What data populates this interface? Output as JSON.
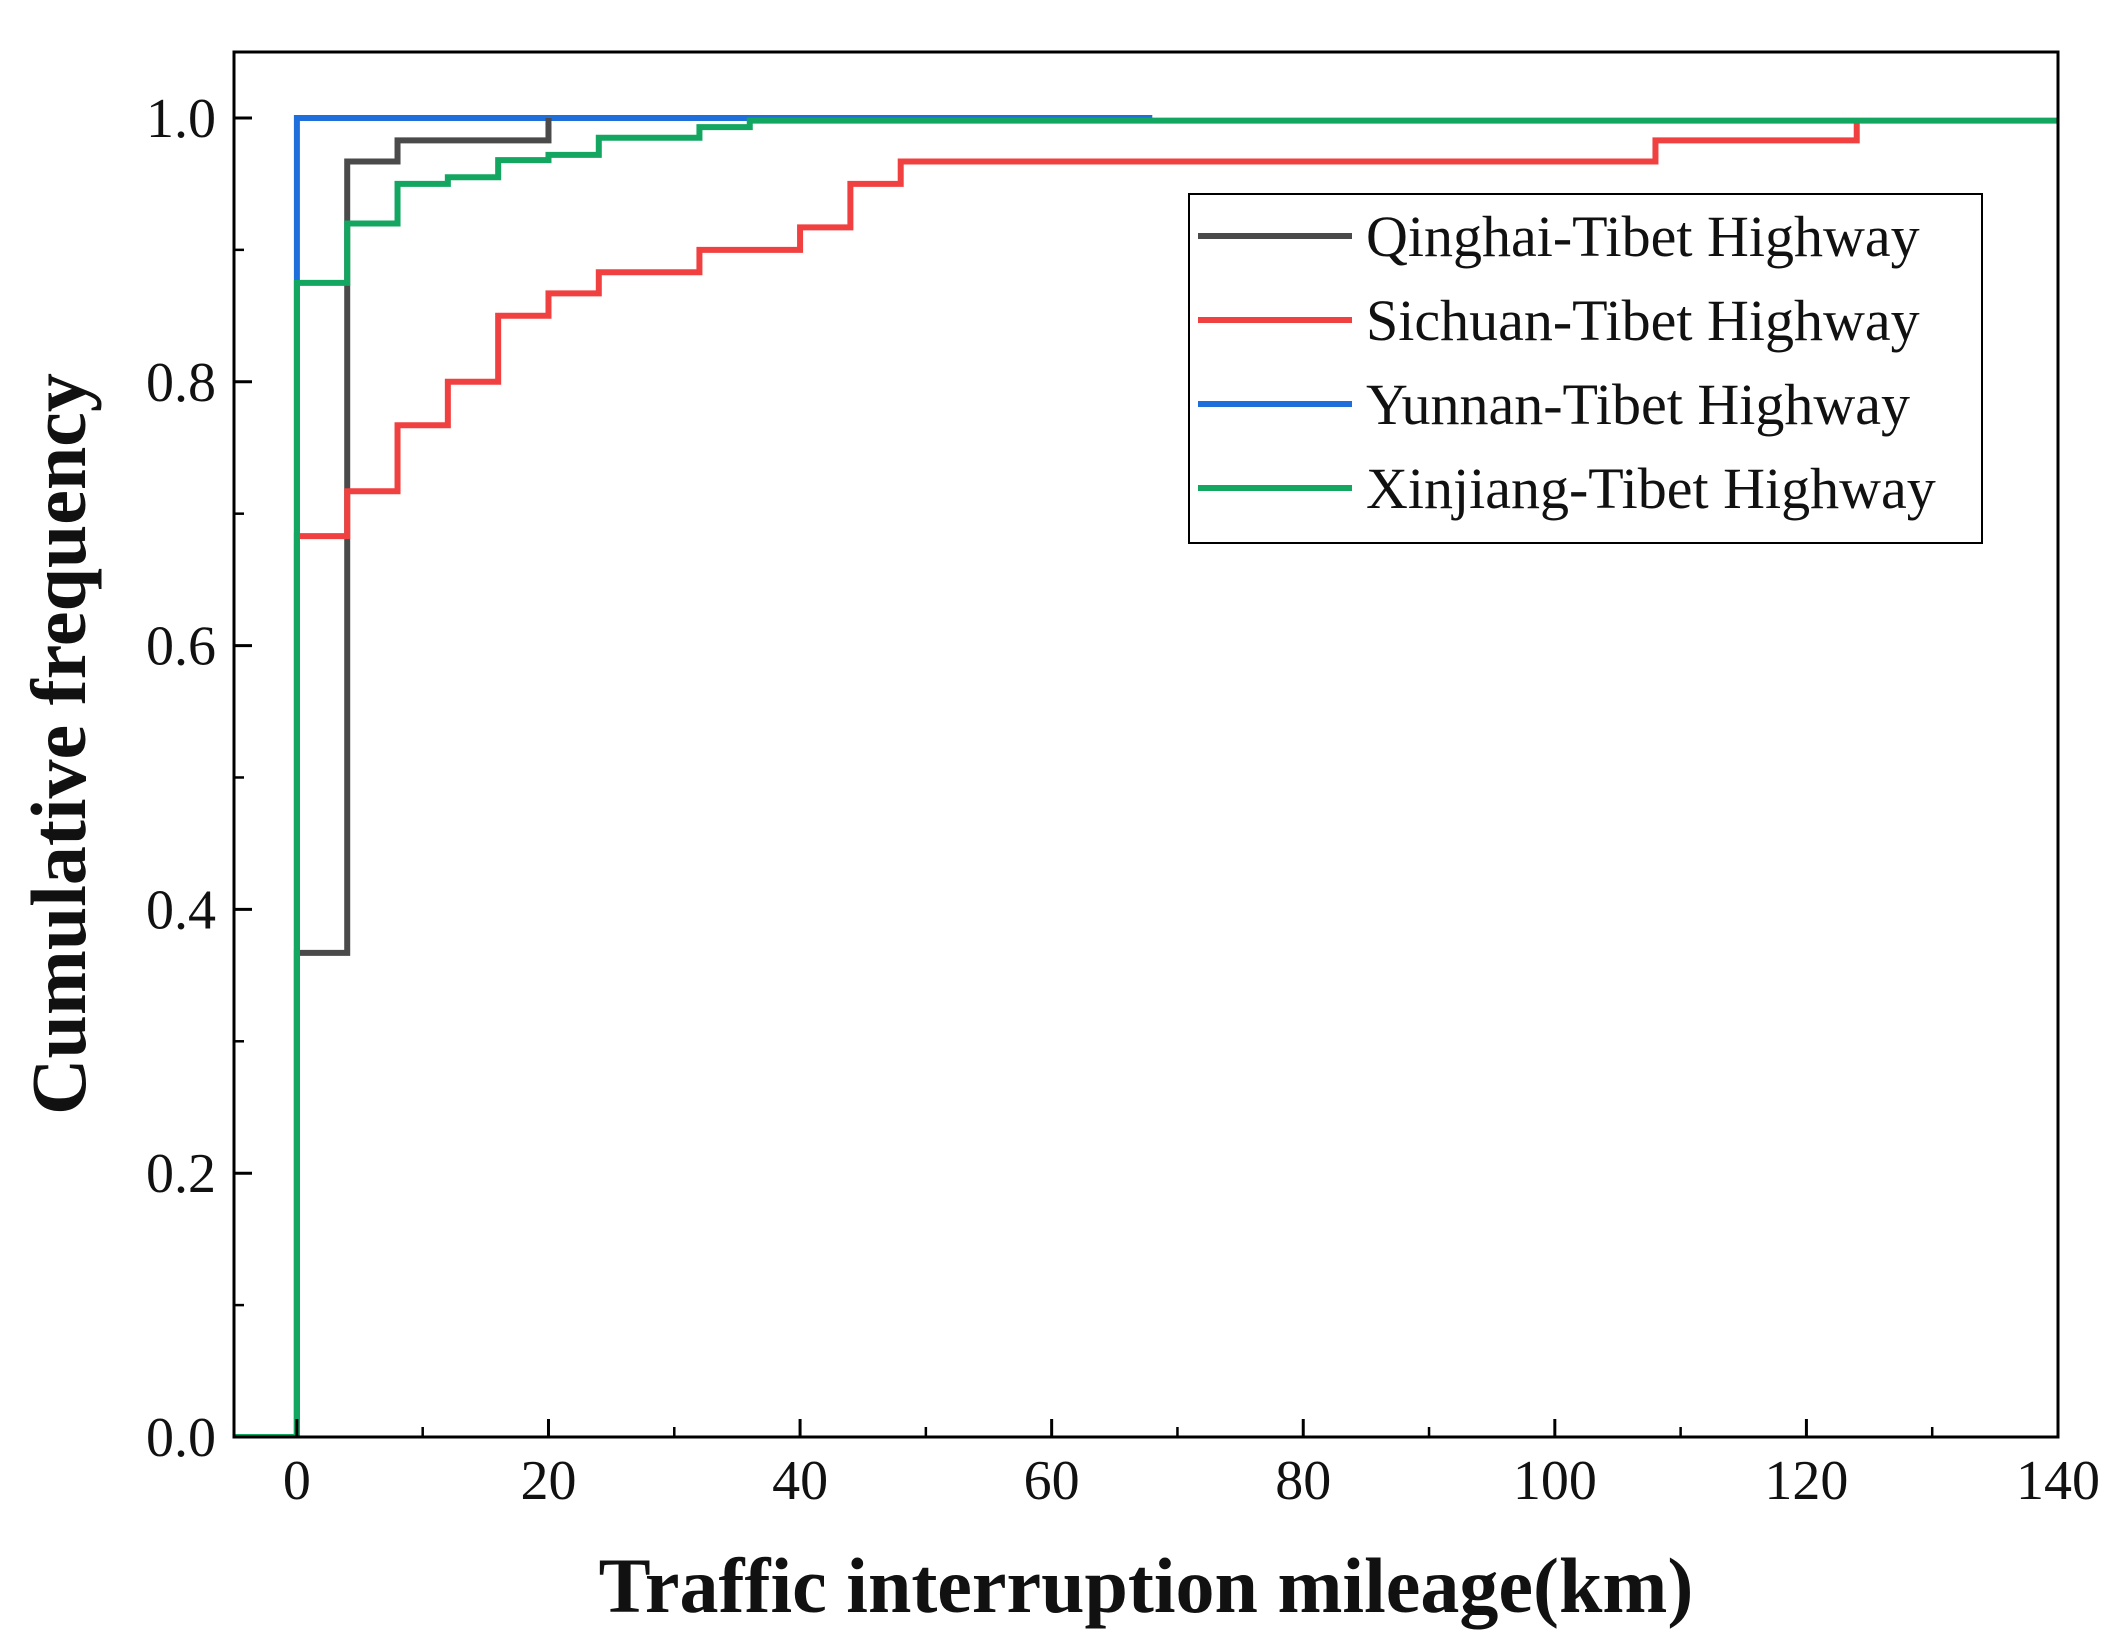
{
  "chart_data": {
    "type": "line",
    "step": true,
    "title": "",
    "xlabel": "Traffic interruption mileage(km)",
    "ylabel": "Cumulative frequency",
    "xlim": [
      -5,
      140
    ],
    "ylim": [
      0,
      1.05
    ],
    "x_ticks": [
      0,
      20,
      40,
      60,
      80,
      100,
      120,
      140
    ],
    "x_tick_labels": [
      "0",
      "20",
      "40",
      "60",
      "80",
      "100",
      "120",
      "140"
    ],
    "x_minor_ticks": [
      10,
      30,
      50,
      70,
      90,
      110,
      130
    ],
    "y_ticks": [
      0.0,
      0.2,
      0.4,
      0.6,
      0.8,
      1.0
    ],
    "y_tick_labels": [
      "0.0",
      "0.2",
      "0.4",
      "0.6",
      "0.8",
      "1.0"
    ],
    "y_minor_ticks": [
      0.1,
      0.3,
      0.5,
      0.7,
      0.9
    ],
    "grid": false,
    "legend_position": "top-right",
    "series": [
      {
        "name": "Qinghai-Tibet Highway",
        "color": "#4a4a4a",
        "x": [
          0,
          4,
          8,
          20
        ],
        "y": [
          0.367,
          0.967,
          0.983,
          1.0
        ]
      },
      {
        "name": "Sichuan-Tibet Highway",
        "color": "#f04040",
        "x": [
          0,
          4,
          8,
          12,
          16,
          20,
          24,
          32,
          40,
          44,
          48,
          108,
          124
        ],
        "y": [
          0.683,
          0.717,
          0.767,
          0.8,
          0.85,
          0.867,
          0.883,
          0.9,
          0.917,
          0.95,
          0.967,
          0.983,
          1.0
        ]
      },
      {
        "name": "Yunnan-Tibet Highway",
        "color": "#1e6fdc",
        "x": [
          0,
          68
        ],
        "y": [
          1.0,
          1.0
        ]
      },
      {
        "name": "Xinjiang-Tibet Highway",
        "color": "#12a660",
        "x": [
          -5,
          0,
          4,
          8,
          12,
          16,
          20,
          24,
          32,
          36,
          140
        ],
        "y": [
          0.0,
          0.875,
          0.92,
          0.95,
          0.955,
          0.968,
          0.972,
          0.985,
          0.993,
          0.998,
          1.0
        ]
      }
    ]
  }
}
